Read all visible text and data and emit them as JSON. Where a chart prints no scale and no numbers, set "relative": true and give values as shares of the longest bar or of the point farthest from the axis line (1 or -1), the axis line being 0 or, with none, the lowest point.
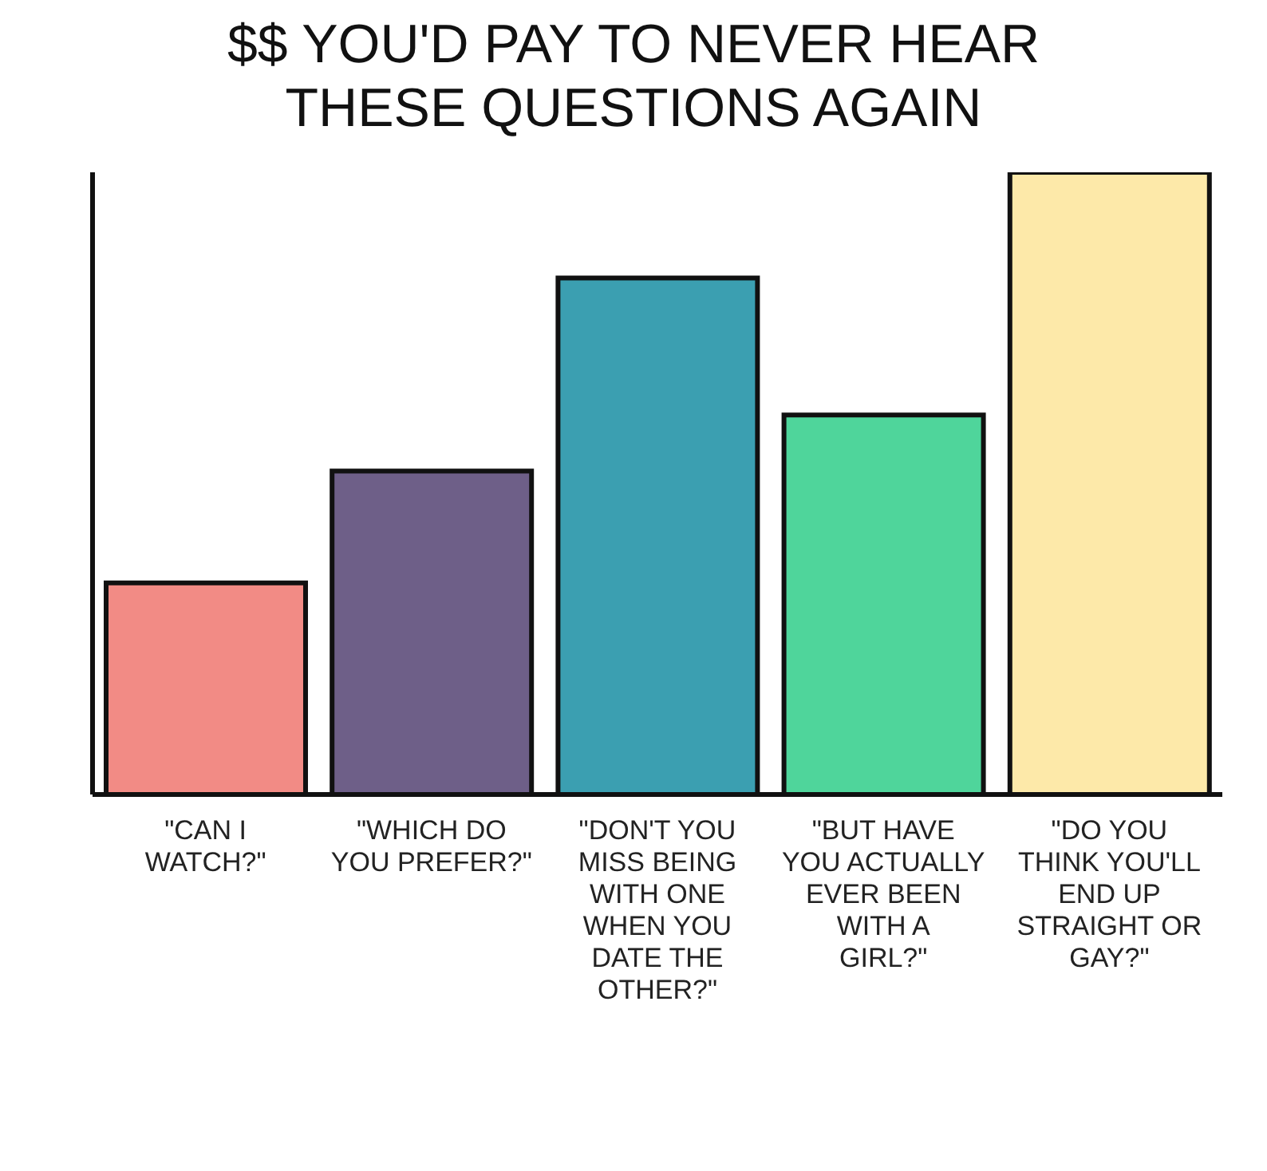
{
  "chart_data": {
    "type": "bar",
    "title": "$$ YOU'D PAY TO NEVER HEAR THESE QUESTIONS AGAIN",
    "relative": true,
    "categories": [
      "\"CAN I WATCH?\"",
      "\"WHICH DO YOU PREFER?\"",
      "\"DON'T YOU MISS BEING WITH ONE WHEN YOU DATE THE OTHER?\"",
      "\"BUT HAVE YOU ACTUALLY EVER BEEN WITH A GIRL?\"",
      "\"DO YOU THINK YOU'LL END UP STRAIGHT OR GAY?\""
    ],
    "values": [
      0.34,
      0.52,
      0.83,
      0.61,
      1
    ],
    "colors": [
      "#f28b85",
      "#6e5f88",
      "#3b9fb1",
      "#4fd59b",
      "#fde9a9"
    ],
    "grid": false,
    "legend": false
  }
}
